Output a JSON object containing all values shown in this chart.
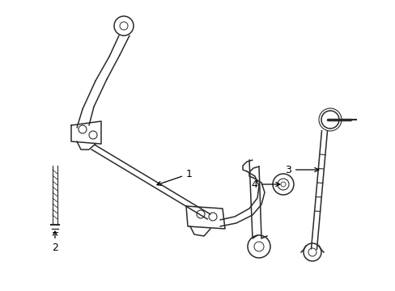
{
  "background_color": "#ffffff",
  "line_color": "#2a2a2a",
  "label_color": "#000000",
  "lw": 1.1,
  "fig_w": 4.89,
  "fig_h": 3.6,
  "dpi": 100
}
